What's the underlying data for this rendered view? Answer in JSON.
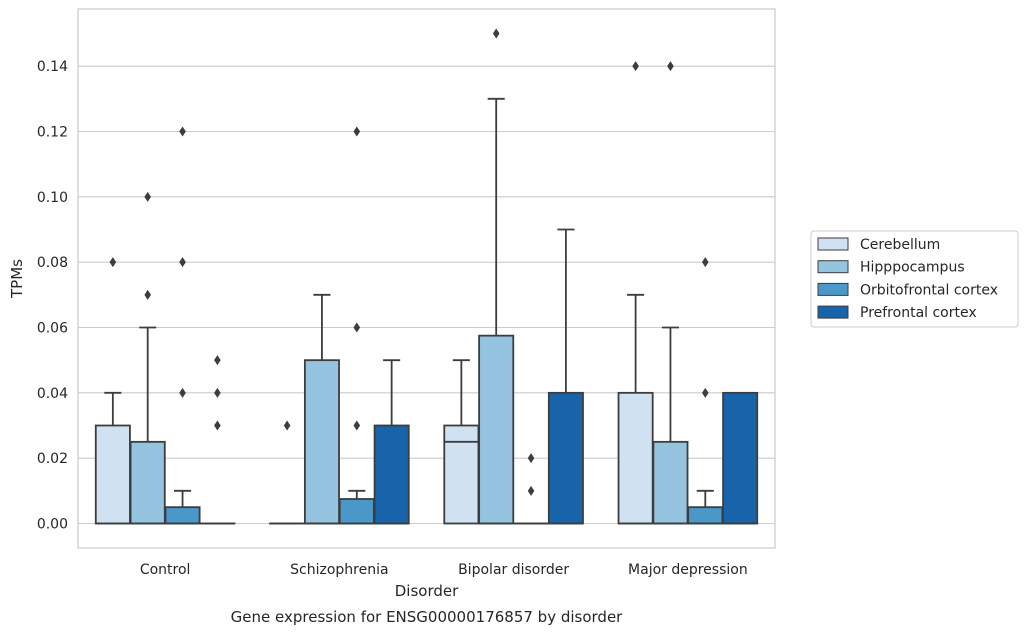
{
  "chart_data": {
    "type": "box",
    "title": "Gene expression for ENSG00000176857 by disorder",
    "xlabel": "Disorder",
    "ylabel": "TPMs",
    "ylim": [
      -0.0075,
      0.1575
    ],
    "yticks": [
      "0.00",
      "0.02",
      "0.04",
      "0.06",
      "0.08",
      "0.10",
      "0.12",
      "0.14"
    ],
    "grid": true,
    "legend_position": "right",
    "categories": [
      "Control",
      "Schizophrenia",
      "Bipolar disorder",
      "Major depression"
    ],
    "series": [
      {
        "name": "Cerebellum",
        "color": "#d0e1f2",
        "boxes": [
          {
            "q1": 0.0,
            "median": 0.0,
            "q3": 0.03,
            "whisker_low": 0.0,
            "whisker_high": 0.04,
            "outliers": [
              0.08
            ]
          },
          {
            "q1": 0.0,
            "median": 0.0,
            "q3": 0.0,
            "whisker_low": 0.0,
            "whisker_high": 0.0,
            "outliers": [
              0.03
            ]
          },
          {
            "q1": 0.0,
            "median": 0.025,
            "q3": 0.03,
            "whisker_low": 0.0,
            "whisker_high": 0.05,
            "outliers": []
          },
          {
            "q1": 0.0,
            "median": 0.0,
            "q3": 0.04,
            "whisker_low": 0.0,
            "whisker_high": 0.07,
            "outliers": [
              0.14
            ]
          }
        ]
      },
      {
        "name": "Hipppocampus",
        "color": "#94c4df",
        "boxes": [
          {
            "q1": 0.0,
            "median": 0.0,
            "q3": 0.025,
            "whisker_low": 0.0,
            "whisker_high": 0.06,
            "outliers": [
              0.07,
              0.1
            ]
          },
          {
            "q1": 0.0,
            "median": 0.0,
            "q3": 0.05,
            "whisker_low": 0.0,
            "whisker_high": 0.07,
            "outliers": []
          },
          {
            "q1": 0.0,
            "median": 0.0,
            "q3": 0.0575,
            "whisker_low": 0.0,
            "whisker_high": 0.13,
            "outliers": [
              0.15
            ]
          },
          {
            "q1": 0.0,
            "median": 0.0,
            "q3": 0.025,
            "whisker_low": 0.0,
            "whisker_high": 0.06,
            "outliers": [
              0.14
            ]
          }
        ]
      },
      {
        "name": "Orbitofrontal cortex",
        "color": "#4a98c9",
        "boxes": [
          {
            "q1": 0.0,
            "median": 0.0,
            "q3": 0.005,
            "whisker_low": 0.0,
            "whisker_high": 0.01,
            "outliers": [
              0.04,
              0.08,
              0.12
            ]
          },
          {
            "q1": 0.0,
            "median": 0.0,
            "q3": 0.0075,
            "whisker_low": 0.0,
            "whisker_high": 0.01,
            "outliers": [
              0.03,
              0.06,
              0.12
            ]
          },
          {
            "q1": 0.0,
            "median": 0.0,
            "q3": 0.0,
            "whisker_low": 0.0,
            "whisker_high": 0.0,
            "outliers": [
              0.01,
              0.02
            ]
          },
          {
            "q1": 0.0,
            "median": 0.0,
            "q3": 0.005,
            "whisker_low": 0.0,
            "whisker_high": 0.01,
            "outliers": [
              0.04,
              0.08
            ]
          }
        ]
      },
      {
        "name": "Prefrontal cortex",
        "color": "#1764ab",
        "boxes": [
          {
            "q1": 0.0,
            "median": 0.0,
            "q3": 0.0,
            "whisker_low": 0.0,
            "whisker_high": 0.0,
            "outliers": [
              0.03,
              0.04,
              0.05
            ]
          },
          {
            "q1": 0.0,
            "median": 0.0,
            "q3": 0.03,
            "whisker_low": 0.0,
            "whisker_high": 0.05,
            "outliers": []
          },
          {
            "q1": 0.0,
            "median": 0.0,
            "q3": 0.04,
            "whisker_low": 0.0,
            "whisker_high": 0.09,
            "outliers": []
          },
          {
            "q1": 0.0,
            "median": 0.0,
            "q3": 0.04,
            "whisker_low": 0.0,
            "whisker_high": 0.04,
            "outliers": []
          }
        ]
      }
    ]
  }
}
